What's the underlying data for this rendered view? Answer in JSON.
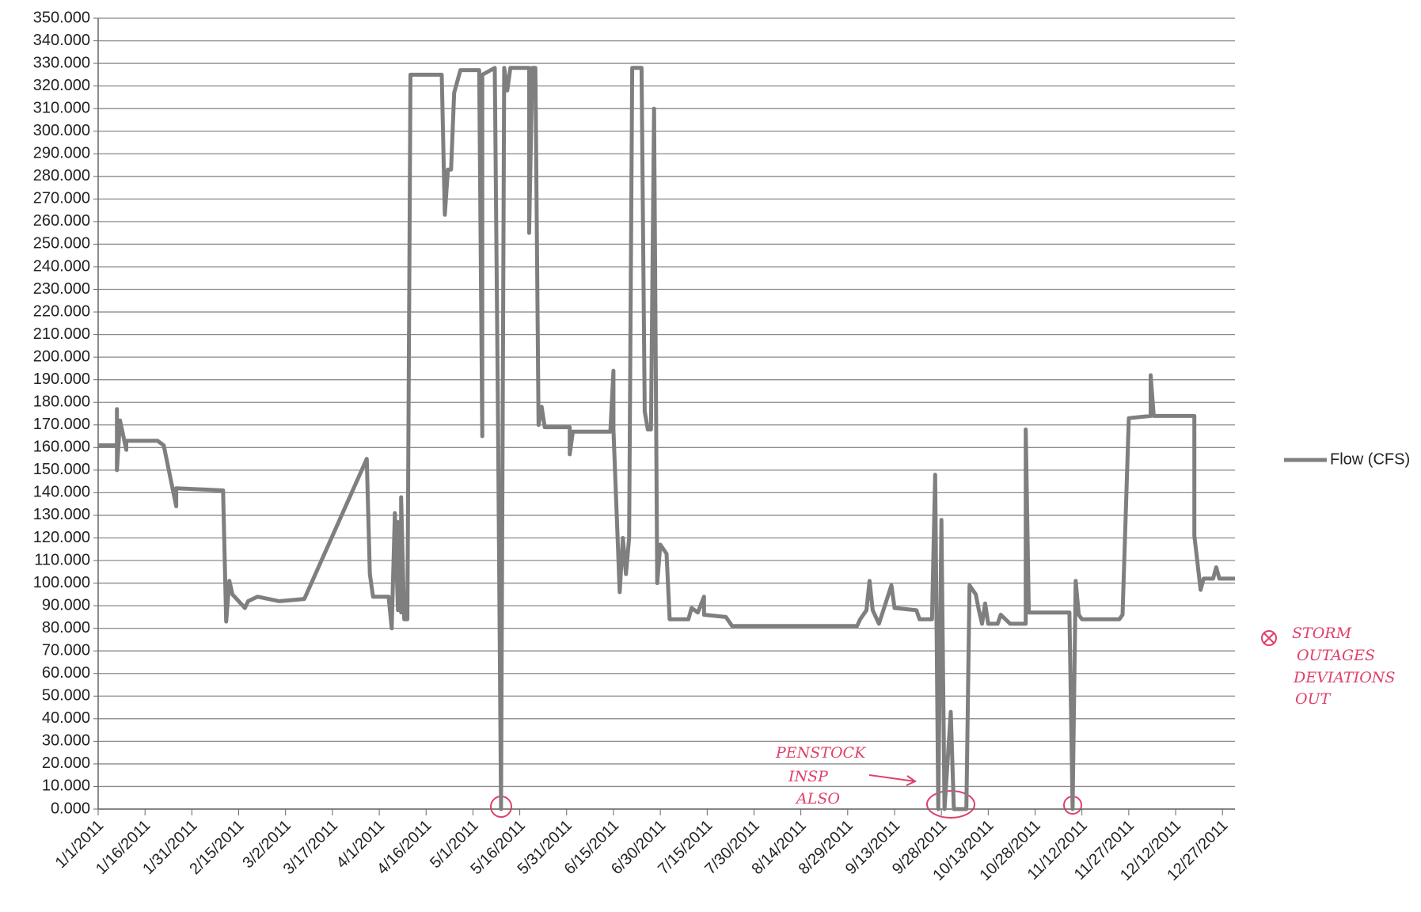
{
  "chart_data": {
    "type": "line",
    "x": [
      "1/1/2011",
      "1/7/2011",
      "1/7/2011",
      "1/7/2011",
      "1/8/2011",
      "1/10/2011",
      "1/10/2011",
      "1/20/2011",
      "1/22/2011",
      "1/26/2011",
      "1/26/2011",
      "2/10/2011",
      "2/11/2011",
      "2/12/2011",
      "2/13/2011",
      "2/17/2011",
      "2/18/2011",
      "2/21/2011",
      "2/28/2011",
      "3/8/2011",
      "3/28/2011",
      "3/29/2011",
      "3/30/2011",
      "4/4/2011",
      "4/5/2011",
      "4/6/2011",
      "4/7/2011",
      "4/7/2011",
      "4/8/2011",
      "4/8/2011",
      "4/9/2011",
      "4/10/2011",
      "4/11/2011",
      "4/21/2011",
      "4/22/2011",
      "4/23/2011",
      "4/24/2011",
      "4/25/2011",
      "4/27/2011",
      "5/3/2011",
      "5/4/2011",
      "5/4/2011",
      "5/8/2011",
      "5/9/2011",
      "5/10/2011",
      "5/11/2011",
      "5/12/2011",
      "5/13/2011",
      "5/19/2011",
      "5/19/2011",
      "5/20/2011",
      "5/21/2011",
      "5/22/2011",
      "5/23/2011",
      "5/24/2011",
      "6/1/2011",
      "6/1/2011",
      "6/2/2011",
      "6/14/2011",
      "6/15/2011",
      "6/15/2011",
      "6/17/2011",
      "6/18/2011",
      "6/19/2011",
      "6/20/2011",
      "6/21/2011",
      "6/24/2011",
      "6/25/2011",
      "6/26/2011",
      "6/27/2011",
      "6/28/2011",
      "6/29/2011",
      "6/30/2011",
      "7/2/2011",
      "7/3/2011",
      "7/9/2011",
      "7/10/2011",
      "7/12/2011",
      "7/14/2011",
      "7/14/2011",
      "7/21/2011",
      "7/23/2011",
      "9/1/2011",
      "9/2/2011",
      "9/4/2011",
      "9/5/2011",
      "9/6/2011",
      "9/8/2011",
      "9/12/2011",
      "9/13/2011",
      "9/20/2011",
      "9/21/2011",
      "9/25/2011",
      "9/26/2011",
      "9/27/2011",
      "9/28/2011",
      "9/29/2011",
      "10/1/2011",
      "10/2/2011",
      "10/6/2011",
      "10/7/2011",
      "10/9/2011",
      "10/10/2011",
      "10/11/2011",
      "10/12/2011",
      "10/13/2011",
      "10/16/2011",
      "10/17/2011",
      "10/20/2011",
      "10/25/2011",
      "10/25/2011",
      "10/26/2011",
      "11/8/2011",
      "11/9/2011",
      "11/10/2011",
      "11/11/2011",
      "11/12/2011",
      "11/24/2011",
      "11/25/2011",
      "11/27/2011",
      "12/4/2011",
      "12/4/2011",
      "12/5/2011",
      "12/18/2011",
      "12/18/2011",
      "12/20/2011",
      "12/21/2011",
      "12/24/2011",
      "12/25/2011",
      "12/26/2011",
      "12/31/2011"
    ],
    "series": [
      {
        "name": "Flow (CFS)",
        "color": "#7f7f7f",
        "values": [
          161,
          161,
          177,
          150,
          172,
          159,
          163,
          163,
          161,
          134,
          142,
          141,
          83,
          101,
          95,
          89,
          92,
          94,
          92,
          93,
          155,
          104,
          94,
          94,
          80,
          131,
          88,
          127,
          87,
          138,
          84,
          84,
          325,
          325,
          263,
          283,
          283,
          317,
          327,
          327,
          165,
          325,
          328,
          176,
          0,
          328,
          318,
          328,
          328,
          255,
          328,
          328,
          170,
          178,
          169,
          169,
          157,
          167,
          167,
          194,
          168,
          96,
          120,
          104,
          120,
          328,
          328,
          176,
          168,
          168,
          310,
          100,
          117,
          113,
          84,
          84,
          89,
          87,
          94,
          86,
          85,
          81,
          81,
          84,
          88,
          101,
          88,
          82,
          99,
          89,
          88,
          84,
          84,
          148,
          0,
          128,
          0,
          43,
          0,
          0,
          99,
          95,
          88,
          82,
          91,
          82,
          82,
          86,
          82,
          82,
          168,
          87,
          87,
          0,
          101,
          86,
          84,
          84,
          86,
          173,
          174,
          192,
          174,
          174,
          121,
          97,
          102,
          102,
          107,
          102,
          102
        ]
      }
    ],
    "xlim": [
      "1/1/2011",
      "12/31/2011"
    ],
    "xticks": [
      "1/1/2011",
      "1/16/2011",
      "1/31/2011",
      "2/15/2011",
      "3/2/2011",
      "3/17/2011",
      "4/1/2011",
      "4/16/2011",
      "5/1/2011",
      "5/16/2011",
      "5/31/2011",
      "6/15/2011",
      "6/30/2011",
      "7/15/2011",
      "7/30/2011",
      "8/14/2011",
      "8/29/2011",
      "9/13/2011",
      "9/28/2011",
      "10/13/2011",
      "10/28/2011",
      "11/12/2011",
      "11/27/2011",
      "12/12/2011",
      "12/27/2011"
    ],
    "ylim": [
      0,
      350
    ],
    "yticks": [
      {
        "value": 0,
        "label": "0.000"
      },
      {
        "value": 10,
        "label": "10.000"
      },
      {
        "value": 20,
        "label": "20.000"
      },
      {
        "value": 30,
        "label": "30.000"
      },
      {
        "value": 40,
        "label": "40.000"
      },
      {
        "value": 50,
        "label": "50.000"
      },
      {
        "value": 60,
        "label": "60.000"
      },
      {
        "value": 70,
        "label": "70.000"
      },
      {
        "value": 80,
        "label": "80.000"
      },
      {
        "value": 90,
        "label": "90.000"
      },
      {
        "value": 100,
        "label": "100.000"
      },
      {
        "value": 110,
        "label": "110.000"
      },
      {
        "value": 120,
        "label": "120.000"
      },
      {
        "value": 130,
        "label": "130.000"
      },
      {
        "value": 140,
        "label": "140.000"
      },
      {
        "value": 150,
        "label": "150.000"
      },
      {
        "value": 160,
        "label": "160.000"
      },
      {
        "value": 170,
        "label": "170.000"
      },
      {
        "value": 180,
        "label": "180.000"
      },
      {
        "value": 190,
        "label": "190.000"
      },
      {
        "value": 200,
        "label": "200.000"
      },
      {
        "value": 210,
        "label": "210.000"
      },
      {
        "value": 220,
        "label": "220.000"
      },
      {
        "value": 230,
        "label": "230.000"
      },
      {
        "value": 240,
        "label": "240.000"
      },
      {
        "value": 250,
        "label": "250.000"
      },
      {
        "value": 260,
        "label": "260.000"
      },
      {
        "value": 270,
        "label": "270.000"
      },
      {
        "value": 280,
        "label": "280.000"
      },
      {
        "value": 290,
        "label": "290.000"
      },
      {
        "value": 300,
        "label": "300.000"
      },
      {
        "value": 310,
        "label": "310.000"
      },
      {
        "value": 320,
        "label": "320.000"
      },
      {
        "value": 330,
        "label": "330.000"
      },
      {
        "value": 340,
        "label": "340.000"
      },
      {
        "value": 350,
        "label": "350.000"
      }
    ],
    "grid": true,
    "legend": "right",
    "annotations": [
      [
        "PENSTOCK",
        "INSP",
        "ALSO"
      ],
      [
        "STORM",
        "OUTAGES",
        "DEVIATIONS",
        "OUT"
      ]
    ]
  }
}
